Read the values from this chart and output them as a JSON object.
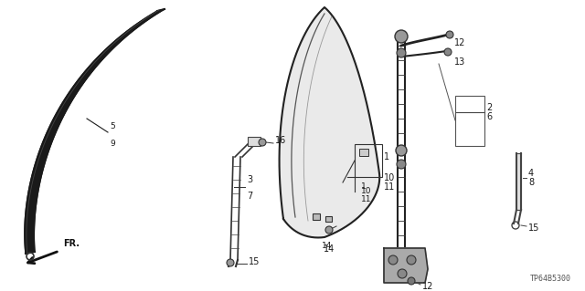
{
  "bg_color": "#ffffff",
  "part_color": "#1a1a1a",
  "label_color": "#111111",
  "diagram_code": "TP64B5300",
  "figsize": [
    6.4,
    3.19
  ],
  "dpi": 100
}
